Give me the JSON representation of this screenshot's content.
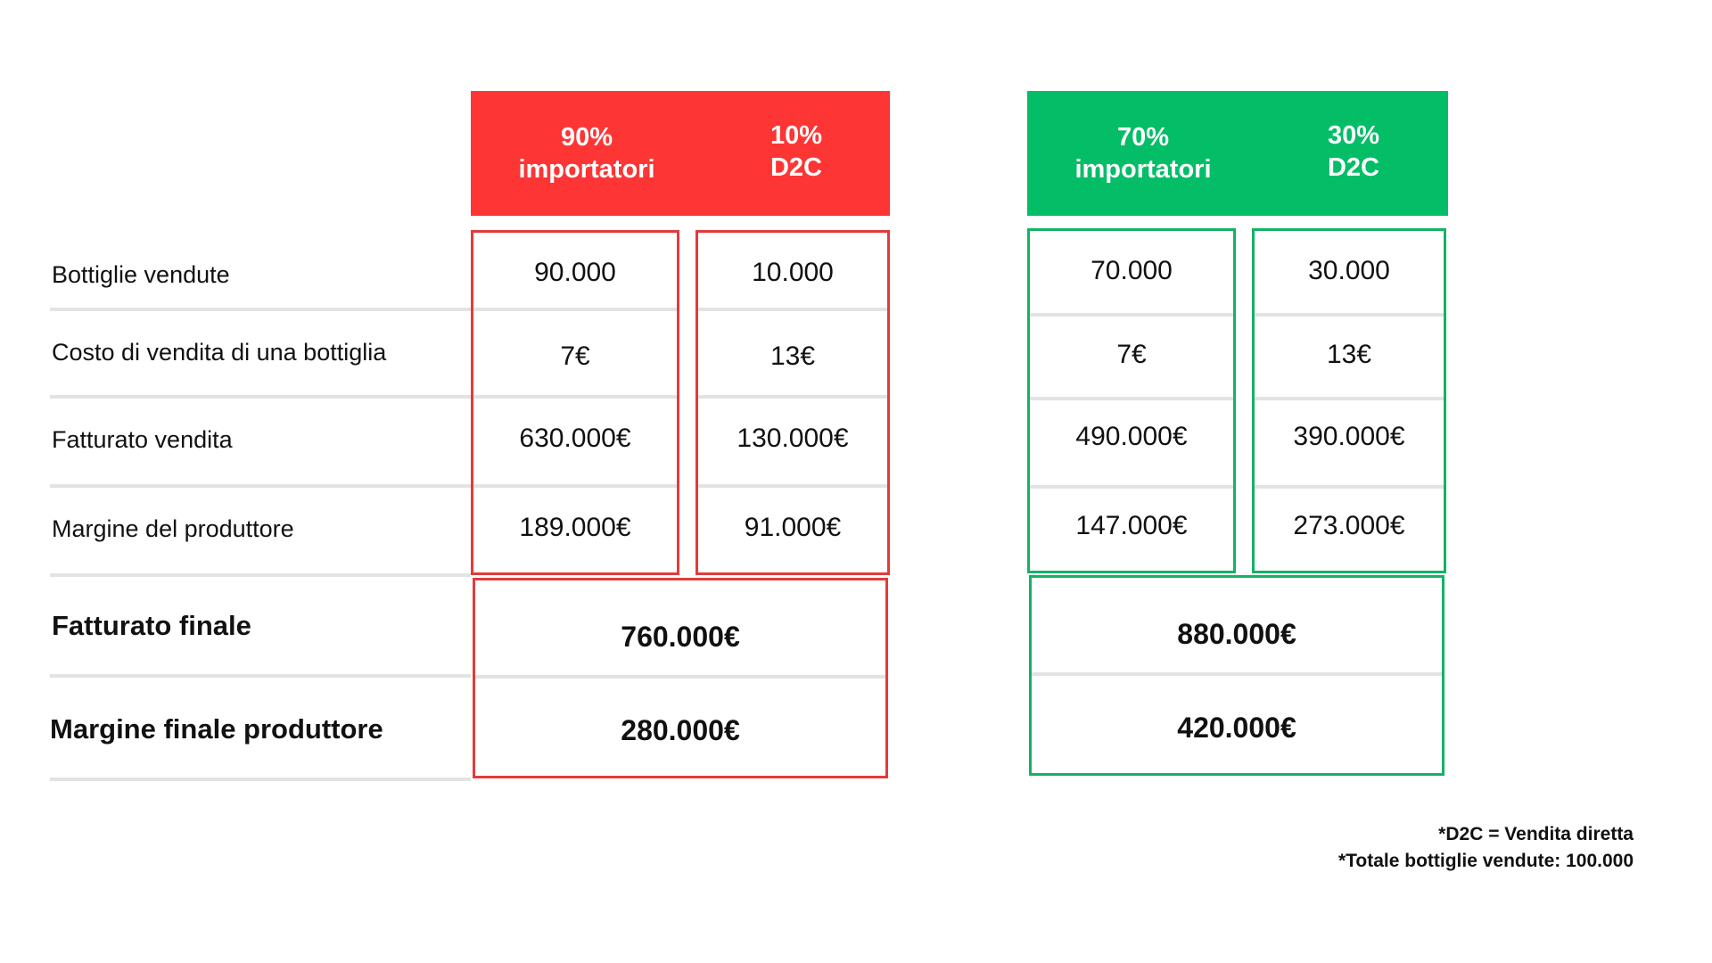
{
  "row_labels": {
    "bottles_sold": "Bottiglie vendute",
    "cost_per_bottle": "Costo di vendita di una bottiglia",
    "sales_revenue": "Fatturato vendita",
    "producer_margin": "Margine del produttore",
    "final_revenue": "Fatturato finale",
    "final_margin": "Margine finale produttore"
  },
  "scenario_a": {
    "color": "#fe3535",
    "importers_header": {
      "pct": "90%",
      "label": "importatori"
    },
    "d2c_header": {
      "pct": "10%",
      "label": "D2C"
    },
    "importers": [
      "90.000",
      "7€",
      "630.000€",
      "189.000€"
    ],
    "d2c": [
      "10.000",
      "13€",
      "130.000€",
      "91.000€"
    ],
    "final_revenue": "760.000€",
    "final_margin": "280.000€"
  },
  "scenario_b": {
    "color": "#04bd67",
    "importers_header": {
      "pct": "70%",
      "label": "importatori"
    },
    "d2c_header": {
      "pct": "30%",
      "label": "D2C"
    },
    "importers": [
      "70.000",
      "7€",
      "490.000€",
      "147.000€"
    ],
    "d2c": [
      "30.000",
      "13€",
      "390.000€",
      "273.000€"
    ],
    "final_revenue": "880.000€",
    "final_margin": "420.000€"
  },
  "notes": [
    "*D2C = Vendita diretta",
    "*Totale bottiglie vendute: 100.000"
  ]
}
